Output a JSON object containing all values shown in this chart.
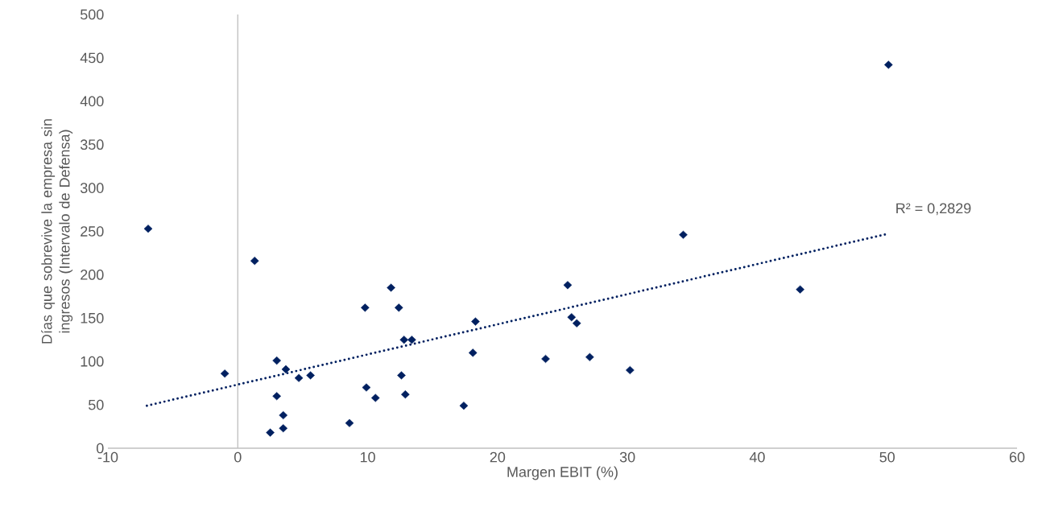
{
  "chart_data": {
    "type": "scatter",
    "xlabel": "Margen EBIT (%)",
    "ylabel": "Días que sobrevive la empresa sin ingresos (Intervalo de Defensa)",
    "xlim": [
      -10,
      60
    ],
    "ylim": [
      0,
      500
    ],
    "xticks": [
      -10,
      0,
      10,
      20,
      30,
      40,
      50,
      60
    ],
    "yticks": [
      0,
      50,
      100,
      150,
      200,
      250,
      300,
      350,
      400,
      450,
      500
    ],
    "grid": false,
    "marker": "diamond",
    "ref_lines": [
      {
        "axis": "x",
        "value": 0,
        "color": "#bfbfbf"
      }
    ],
    "annotations": [
      {
        "text": "R² = 0,2829",
        "x": 50,
        "y": 247
      }
    ],
    "series": [
      {
        "color": "#002060",
        "x": [
          -6.9,
          1.3,
          -1.0,
          3.0,
          3.7,
          4.7,
          5.6,
          3.0,
          3.5,
          3.5,
          2.5,
          8.6,
          9.8,
          9.9,
          10.6,
          11.8,
          12.4,
          12.8,
          13.4,
          12.6,
          12.9,
          17.4,
          18.3,
          18.1,
          23.7,
          25.4,
          25.7,
          26.1,
          27.1,
          30.2,
          34.3,
          43.3,
          50.1
        ],
        "values": [
          253,
          216,
          86,
          101,
          91,
          81,
          84,
          60,
          38,
          23,
          18,
          29,
          162,
          70,
          58,
          185,
          162,
          125,
          125,
          84,
          62,
          49,
          146,
          110,
          103,
          188,
          151,
          144,
          105,
          90,
          246,
          183,
          442
        ]
      },
      {
        "type": "line",
        "color": "#002060",
        "line_style": "dotted",
        "marker": "none",
        "x": [
          -7,
          50
        ],
        "values": [
          49,
          247
        ]
      }
    ]
  }
}
